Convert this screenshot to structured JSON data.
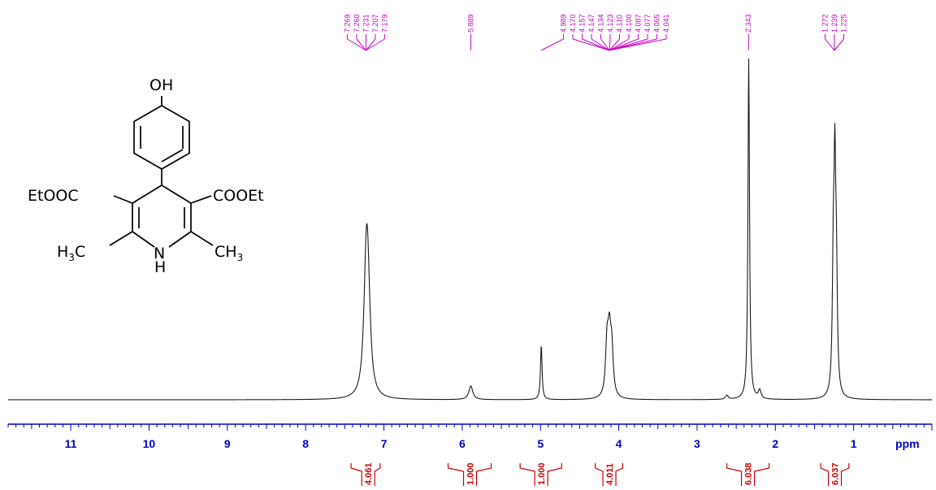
{
  "chart_data": {
    "type": "line",
    "xlabel": "ppm",
    "xlim": [
      11.8,
      0.0
    ],
    "x_direction": "reversed",
    "grid": false,
    "x_ticks": [
      "11",
      "10",
      "9",
      "8",
      "7",
      "6",
      "5",
      "4",
      "3",
      "2",
      "1"
    ],
    "peak_groups": [
      {
        "labels": [
          "7.269",
          "7.260",
          "7.231",
          "7.207",
          "7.179"
        ]
      },
      {
        "labels": [
          "5.889"
        ]
      },
      {
        "labels": [
          "4.989",
          "4.170",
          "4.157",
          "4.147",
          "4.134",
          "4.123",
          "4.110",
          "4.100",
          "4.087",
          "4.077",
          "4.065",
          "4.041"
        ]
      },
      {
        "labels": [
          "2.343"
        ]
      },
      {
        "labels": [
          "1.272",
          "1.239",
          "1.225"
        ]
      }
    ],
    "peaks": [
      {
        "ppm": 7.23,
        "height": 0.25,
        "width": 0.035
      },
      {
        "ppm": 7.21,
        "height": 0.27,
        "width": 0.035
      },
      {
        "ppm": 7.19,
        "height": 0.06,
        "width": 0.035
      },
      {
        "ppm": 5.89,
        "height": 0.04,
        "width": 0.03
      },
      {
        "ppm": 4.99,
        "height": 0.16,
        "width": 0.012
      },
      {
        "ppm": 4.15,
        "height": 0.15,
        "width": 0.022
      },
      {
        "ppm": 4.12,
        "height": 0.16,
        "width": 0.022
      },
      {
        "ppm": 4.09,
        "height": 0.13,
        "width": 0.022
      },
      {
        "ppm": 2.34,
        "height": 1.0,
        "width": 0.012
      },
      {
        "ppm": 2.62,
        "height": 0.012,
        "width": 0.02
      },
      {
        "ppm": 2.2,
        "height": 0.025,
        "width": 0.02
      },
      {
        "ppm": 1.26,
        "height": 0.34,
        "width": 0.014
      },
      {
        "ppm": 1.24,
        "height": 0.6,
        "width": 0.014
      },
      {
        "ppm": 1.22,
        "height": 0.3,
        "width": 0.014
      }
    ],
    "integrals": [
      {
        "ppm": 7.2,
        "ppm_from": 7.42,
        "ppm_to": 7.05,
        "value": "4.061"
      },
      {
        "ppm": 5.9,
        "ppm_from": 6.18,
        "ppm_to": 5.63,
        "value": "1.000"
      },
      {
        "ppm": 4.99,
        "ppm_from": 5.26,
        "ppm_to": 4.73,
        "value": "1.000"
      },
      {
        "ppm": 4.12,
        "ppm_from": 4.3,
        "ppm_to": 3.95,
        "value": "4.011"
      },
      {
        "ppm": 2.35,
        "ppm_from": 2.62,
        "ppm_to": 2.08,
        "value": "6.038"
      },
      {
        "ppm": 1.24,
        "ppm_from": 1.42,
        "ppm_to": 1.06,
        "value": "6.037"
      }
    ],
    "colors": {
      "trace": "#1a1a1a",
      "axis": "#0000cc",
      "peak_labels": "#cc00cc",
      "integrals": "#cc0000"
    }
  },
  "structure": {
    "oh": "OH",
    "left_ester": "EtOOC",
    "right_ester": "COOEt",
    "nh_n": "N",
    "nh_h": "H",
    "left_methyl_h": "H",
    "left_methyl_3": "3",
    "left_methyl_c": "C",
    "right_methyl_ch": "CH",
    "right_methyl_3": "3"
  }
}
